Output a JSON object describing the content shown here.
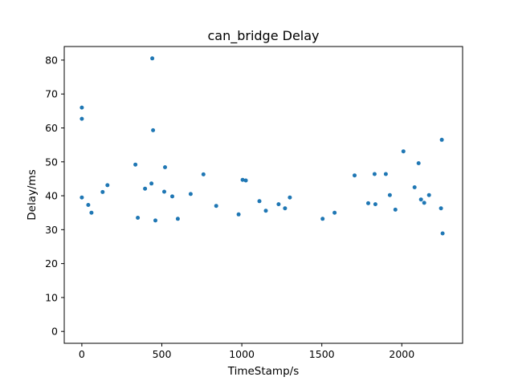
{
  "chart_data": {
    "type": "scatter",
    "title": "can_bridge Delay",
    "xlabel": "TimeStamp/s",
    "ylabel": "Delay/ms",
    "xlim": [
      -110,
      2380
    ],
    "ylim": [
      -3.5,
      84
    ],
    "xticks": [
      0,
      500,
      1000,
      1500,
      2000
    ],
    "yticks": [
      0,
      10,
      20,
      30,
      40,
      50,
      60,
      70,
      80
    ],
    "grid": false,
    "legend": "none",
    "colors": {
      "marker": "#1f77b4"
    },
    "series": [
      {
        "points": [
          [
            0,
            66.0
          ],
          [
            0,
            62.7
          ],
          [
            440,
            80.5
          ],
          [
            445,
            59.3
          ],
          [
            335,
            49.2
          ],
          [
            520,
            48.4
          ],
          [
            2010,
            53.1
          ],
          [
            2250,
            56.5
          ],
          [
            2105,
            49.6
          ],
          [
            760,
            46.3
          ],
          [
            1705,
            46.0
          ],
          [
            1830,
            46.4
          ],
          [
            1900,
            46.4
          ],
          [
            1005,
            44.7
          ],
          [
            1025,
            44.5
          ],
          [
            160,
            43.1
          ],
          [
            435,
            43.6
          ],
          [
            0,
            39.5
          ],
          [
            395,
            42.1
          ],
          [
            130,
            41.1
          ],
          [
            2080,
            42.5
          ],
          [
            2120,
            38.9
          ],
          [
            2140,
            37.9
          ],
          [
            2170,
            40.2
          ],
          [
            515,
            41.2
          ],
          [
            565,
            39.8
          ],
          [
            680,
            40.5
          ],
          [
            1300,
            39.5
          ],
          [
            1925,
            40.2
          ],
          [
            1835,
            37.5
          ],
          [
            1790,
            37.8
          ],
          [
            1960,
            35.9
          ],
          [
            40,
            37.3
          ],
          [
            60,
            35.0
          ],
          [
            840,
            37.0
          ],
          [
            980,
            34.5
          ],
          [
            1110,
            38.4
          ],
          [
            1150,
            35.6
          ],
          [
            1230,
            37.5
          ],
          [
            1270,
            36.3
          ],
          [
            1505,
            33.2
          ],
          [
            1580,
            35.0
          ],
          [
            350,
            33.5
          ],
          [
            460,
            32.7
          ],
          [
            600,
            33.2
          ],
          [
            2245,
            36.3
          ],
          [
            2255,
            28.9
          ]
        ]
      }
    ]
  }
}
